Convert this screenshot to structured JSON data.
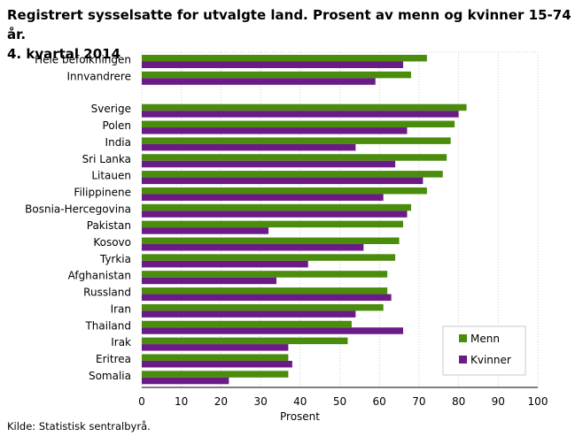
{
  "title_line1": "Registrert sysselsatte for utvalgte land. Prosent av menn og kvinner 15-74 år.",
  "title_line2": "4. kvartal 2014",
  "source": "Kilde: Statistisk sentralbyrå.",
  "colors": {
    "menn": "#4a8c0c",
    "kvinner": "#6a1b85",
    "grid": "#d0d0d0"
  },
  "chart_data": {
    "type": "bar",
    "orientation": "horizontal",
    "title": "Registrert sysselsatte for utvalgte land. Prosent av menn og kvinner 15-74 år. 4. kvartal 2014",
    "xlabel": "Prosent",
    "ylabel": "",
    "xlim": [
      0,
      100
    ],
    "xticks": [
      0,
      10,
      20,
      30,
      40,
      50,
      60,
      70,
      80,
      90,
      100
    ],
    "grid": true,
    "legend_position": "bottom-right",
    "categories": [
      "Hele befolkningen",
      "Innvandrere",
      "Sverige",
      "Polen",
      "India",
      "Sri Lanka",
      "Litauen",
      "Filippinene",
      "Bosnia-Hercegovina",
      "Pakistan",
      "Kosovo",
      "Tyrkia",
      "Afghanistan",
      "Russland",
      "Iran",
      "Thailand",
      "Irak",
      "Eritrea",
      "Somalia"
    ],
    "series": [
      {
        "name": "Menn",
        "values": [
          72,
          68,
          82,
          79,
          78,
          77,
          76,
          72,
          68,
          66,
          65,
          64,
          62,
          62,
          61,
          53,
          52,
          37,
          37
        ]
      },
      {
        "name": "Kvinner",
        "values": [
          66,
          59,
          80,
          67,
          54,
          64,
          71,
          61,
          67,
          32,
          56,
          42,
          34,
          63,
          54,
          66,
          37,
          38,
          22
        ]
      }
    ]
  }
}
